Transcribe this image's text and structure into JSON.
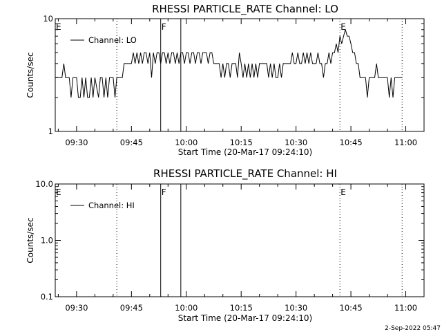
{
  "chart_data": [
    {
      "type": "line",
      "title": "RHESSI PARTICLE_RATE Channel: LO",
      "xlabel": "Start Time (20-Mar-17 09:24:10)",
      "ylabel": "Counts/sec",
      "yscale": "log",
      "ylim": [
        1,
        10
      ],
      "ytick_labels": [
        "1",
        "10"
      ],
      "xlim": [
        "09:24:10",
        "11:05:00"
      ],
      "xtick_labels": [
        "09:30",
        "09:45",
        "10:00",
        "10:15",
        "10:30",
        "10:45",
        "11:00"
      ],
      "legend": {
        "label": "Channel: LO",
        "position": "top-left"
      },
      "markers": [
        {
          "label": "E",
          "time": "09:24:10",
          "style": "none"
        },
        {
          "label": "",
          "time": "09:41:00",
          "style": "dotted"
        },
        {
          "label": "F",
          "time": "09:53:00",
          "style": "solid"
        },
        {
          "label": "",
          "time": "09:58:30",
          "style": "solid"
        },
        {
          "label": "E",
          "time": "10:42:00",
          "style": "dotted"
        },
        {
          "label": "",
          "time": "10:59:00",
          "style": "dotted"
        }
      ],
      "series": [
        {
          "name": "Channel: LO",
          "points": [
            [
              "09:24:10",
              3
            ],
            [
              "09:25:00",
              3
            ],
            [
              "09:26:00",
              3
            ],
            [
              "09:26:30",
              4
            ],
            [
              "09:27:00",
              3
            ],
            [
              "09:28:00",
              3
            ],
            [
              "09:28:30",
              2
            ],
            [
              "09:29:00",
              3
            ],
            [
              "09:30:00",
              3
            ],
            [
              "09:30:30",
              2
            ],
            [
              "09:31:00",
              2
            ],
            [
              "09:31:30",
              3
            ],
            [
              "09:32:00",
              2
            ],
            [
              "09:32:30",
              3
            ],
            [
              "09:33:00",
              2
            ],
            [
              "09:33:30",
              2
            ],
            [
              "09:34:00",
              3
            ],
            [
              "09:34:30",
              2
            ],
            [
              "09:35:00",
              3
            ],
            [
              "09:36:00",
              2
            ],
            [
              "09:36:30",
              3
            ],
            [
              "09:37:00",
              3
            ],
            [
              "09:37:30",
              2
            ],
            [
              "09:38:00",
              3
            ],
            [
              "09:38:30",
              2
            ],
            [
              "09:39:00",
              3
            ],
            [
              "09:40:00",
              3
            ],
            [
              "09:40:30",
              2
            ],
            [
              "09:41:00",
              3
            ],
            [
              "09:42:00",
              3
            ],
            [
              "09:42:30",
              3
            ],
            [
              "09:43:00",
              4
            ],
            [
              "09:44:00",
              4
            ],
            [
              "09:45:00",
              4
            ],
            [
              "09:45:30",
              5
            ],
            [
              "09:46:00",
              4
            ],
            [
              "09:46:30",
              5
            ],
            [
              "09:47:00",
              4
            ],
            [
              "09:47:30",
              5
            ],
            [
              "09:48:00",
              4
            ],
            [
              "09:48:30",
              5
            ],
            [
              "09:49:00",
              5
            ],
            [
              "09:49:30",
              4
            ],
            [
              "09:50:00",
              5
            ],
            [
              "09:50:30",
              3
            ],
            [
              "09:51:00",
              5
            ],
            [
              "09:51:30",
              4
            ],
            [
              "09:52:00",
              5
            ],
            [
              "09:52:30",
              5
            ],
            [
              "09:53:00",
              4
            ],
            [
              "09:53:30",
              5
            ],
            [
              "09:54:00",
              5
            ],
            [
              "09:54:30",
              4
            ],
            [
              "09:55:00",
              5
            ],
            [
              "09:55:30",
              4
            ],
            [
              "09:56:00",
              5
            ],
            [
              "09:56:30",
              5
            ],
            [
              "09:57:00",
              4
            ],
            [
              "09:57:30",
              5
            ],
            [
              "09:58:00",
              4
            ],
            [
              "09:58:30",
              5
            ],
            [
              "09:59:00",
              5
            ],
            [
              "09:59:30",
              4
            ],
            [
              "10:00:00",
              5
            ],
            [
              "10:00:30",
              5
            ],
            [
              "10:01:00",
              4
            ],
            [
              "10:01:30",
              5
            ],
            [
              "10:02:00",
              5
            ],
            [
              "10:02:30",
              4
            ],
            [
              "10:03:00",
              5
            ],
            [
              "10:03:30",
              5
            ],
            [
              "10:04:00",
              4
            ],
            [
              "10:04:30",
              5
            ],
            [
              "10:05:00",
              5
            ],
            [
              "10:05:30",
              5
            ],
            [
              "10:06:00",
              4
            ],
            [
              "10:06:30",
              5
            ],
            [
              "10:07:00",
              5
            ],
            [
              "10:07:30",
              4
            ],
            [
              "10:08:00",
              4
            ],
            [
              "10:08:30",
              4
            ],
            [
              "10:09:00",
              4
            ],
            [
              "10:09:30",
              3
            ],
            [
              "10:10:00",
              4
            ],
            [
              "10:10:30",
              3
            ],
            [
              "10:11:00",
              4
            ],
            [
              "10:11:30",
              4
            ],
            [
              "10:12:00",
              3
            ],
            [
              "10:12:30",
              4
            ],
            [
              "10:13:00",
              4
            ],
            [
              "10:13:30",
              4
            ],
            [
              "10:14:00",
              3
            ],
            [
              "10:14:30",
              5
            ],
            [
              "10:15:00",
              4
            ],
            [
              "10:15:30",
              3
            ],
            [
              "10:16:00",
              4
            ],
            [
              "10:16:30",
              3
            ],
            [
              "10:17:00",
              4
            ],
            [
              "10:17:30",
              3
            ],
            [
              "10:18:00",
              4
            ],
            [
              "10:18:30",
              3
            ],
            [
              "10:19:00",
              4
            ],
            [
              "10:19:30",
              3
            ],
            [
              "10:20:00",
              4
            ],
            [
              "10:20:30",
              4
            ],
            [
              "10:21:00",
              4
            ],
            [
              "10:21:30",
              4
            ],
            [
              "10:22:00",
              4
            ],
            [
              "10:22:30",
              3
            ],
            [
              "10:23:00",
              4
            ],
            [
              "10:23:30",
              3
            ],
            [
              "10:24:00",
              4
            ],
            [
              "10:24:30",
              3
            ],
            [
              "10:25:00",
              3
            ],
            [
              "10:25:30",
              4
            ],
            [
              "10:26:00",
              3
            ],
            [
              "10:26:30",
              4
            ],
            [
              "10:27:00",
              4
            ],
            [
              "10:27:30",
              4
            ],
            [
              "10:28:00",
              4
            ],
            [
              "10:28:30",
              4
            ],
            [
              "10:29:00",
              5
            ],
            [
              "10:29:30",
              4
            ],
            [
              "10:30:00",
              4
            ],
            [
              "10:30:30",
              5
            ],
            [
              "10:31:00",
              4
            ],
            [
              "10:31:30",
              4
            ],
            [
              "10:32:00",
              5
            ],
            [
              "10:32:30",
              4
            ],
            [
              "10:33:00",
              5
            ],
            [
              "10:33:30",
              4
            ],
            [
              "10:34:00",
              5
            ],
            [
              "10:34:30",
              4
            ],
            [
              "10:35:00",
              4
            ],
            [
              "10:35:30",
              4
            ],
            [
              "10:36:00",
              5
            ],
            [
              "10:36:30",
              4
            ],
            [
              "10:37:00",
              4
            ],
            [
              "10:37:30",
              3
            ],
            [
              "10:38:00",
              4
            ],
            [
              "10:38:30",
              4
            ],
            [
              "10:39:00",
              5
            ],
            [
              "10:39:30",
              4
            ],
            [
              "10:40:00",
              5
            ],
            [
              "10:40:30",
              5
            ],
            [
              "10:41:00",
              6
            ],
            [
              "10:41:30",
              5
            ],
            [
              "10:42:00",
              7
            ],
            [
              "10:42:30",
              6
            ],
            [
              "10:43:00",
              7
            ],
            [
              "10:43:30",
              8
            ],
            [
              "10:44:00",
              7
            ],
            [
              "10:44:30",
              7
            ],
            [
              "10:45:00",
              6
            ],
            [
              "10:45:30",
              5
            ],
            [
              "10:46:00",
              5
            ],
            [
              "10:46:30",
              4
            ],
            [
              "10:47:00",
              4
            ],
            [
              "10:47:30",
              3
            ],
            [
              "10:48:00",
              3
            ],
            [
              "10:49:00",
              3
            ],
            [
              "10:49:30",
              2
            ],
            [
              "10:50:00",
              3
            ],
            [
              "10:51:00",
              3
            ],
            [
              "10:51:30",
              3
            ],
            [
              "10:52:00",
              4
            ],
            [
              "10:52:30",
              3
            ],
            [
              "10:53:00",
              3
            ],
            [
              "10:54:00",
              3
            ],
            [
              "10:55:00",
              3
            ],
            [
              "10:55:30",
              2
            ],
            [
              "10:56:00",
              3
            ],
            [
              "10:56:30",
              2
            ],
            [
              "10:57:00",
              3
            ],
            [
              "10:58:00",
              3
            ],
            [
              "10:59:00",
              3
            ]
          ]
        }
      ]
    },
    {
      "type": "line",
      "title": "RHESSI PARTICLE_RATE Channel: HI",
      "xlabel": "Start Time (20-Mar-17 09:24:10)",
      "ylabel": "Counts/sec",
      "yscale": "log",
      "ylim": [
        0.1,
        10
      ],
      "ytick_labels": [
        "0.1",
        "1.0",
        "10.0"
      ],
      "xlim": [
        "09:24:10",
        "11:05:00"
      ],
      "xtick_labels": [
        "09:30",
        "09:45",
        "10:00",
        "10:15",
        "10:30",
        "10:45",
        "11:00"
      ],
      "legend": {
        "label": "Channel: HI",
        "position": "top-left"
      },
      "markers": [
        {
          "label": "E",
          "time": "09:24:10",
          "style": "none"
        },
        {
          "label": "",
          "time": "09:41:00",
          "style": "dotted"
        },
        {
          "label": "F",
          "time": "09:53:00",
          "style": "solid"
        },
        {
          "label": "",
          "time": "09:58:30",
          "style": "solid"
        },
        {
          "label": "E",
          "time": "10:42:00",
          "style": "dotted"
        },
        {
          "label": "",
          "time": "10:59:00",
          "style": "dotted"
        }
      ],
      "series": [
        {
          "name": "Channel: HI",
          "points": []
        }
      ]
    }
  ],
  "footer": {
    "date": "2-Sep-2022 05:47"
  }
}
